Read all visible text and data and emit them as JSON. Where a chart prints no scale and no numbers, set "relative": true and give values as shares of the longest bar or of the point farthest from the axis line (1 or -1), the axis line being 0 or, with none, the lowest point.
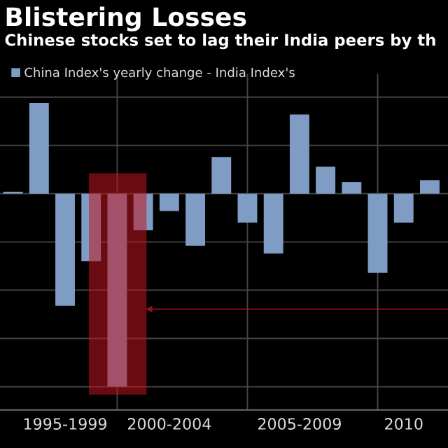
{
  "chart_data": {
    "type": "bar",
    "title": "Blistering Losses",
    "subtitle": "Chinese stocks set to lag their India peers by th",
    "categories": [
      null,
      null,
      "1995-1999",
      null,
      null,
      null,
      "2000-2004",
      null,
      null,
      null,
      null,
      "2005-2009",
      null,
      null,
      null,
      "2010",
      null
    ],
    "series": [
      {
        "name": "China Index's yearly change - India Index's",
        "color": "#7f9cc4",
        "values": [
          0.01,
          0.47,
          -0.58,
          -0.35,
          -1,
          -0.19,
          -0.09,
          -0.27,
          0.19,
          -0.15,
          -0.31,
          0.41,
          0.14,
          0.06,
          -0.41,
          -0.15,
          0.07
        ]
      }
    ],
    "relative": true,
    "grid": true,
    "legend": "top left"
  }
}
